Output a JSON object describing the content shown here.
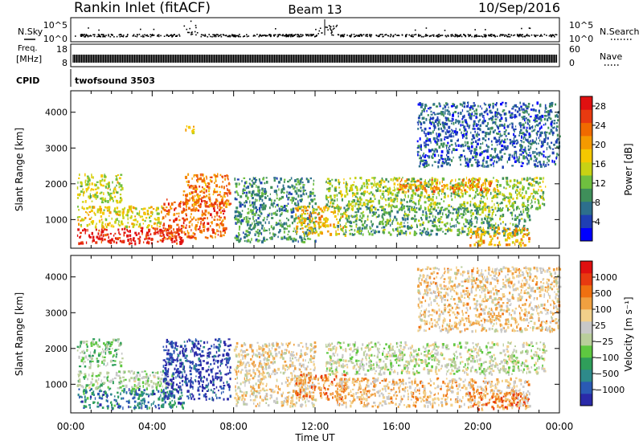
{
  "header": {
    "station": "Rankin Inlet (fitACF)",
    "beam": "Beam 13",
    "date": "10/Sep/2016"
  },
  "status_panels": {
    "nsky_label": "N.Sky",
    "nsky_ticks": [
      "10^5",
      "10^0"
    ],
    "nsearch_label": "N.Search",
    "nsearch_ticks": [
      "10^5",
      "10^0"
    ],
    "freq_label_line1": "Freq.",
    "freq_label_line2": "[MHz]",
    "freq_ticks": [
      "18",
      "8"
    ],
    "nave_label": "Nave",
    "nave_ticks": [
      "60",
      "0"
    ],
    "cpid_label": "CPID",
    "cpid_value": "twofsound 3503"
  },
  "chart_data": [
    {
      "type": "heatmap",
      "panel": "power",
      "ylabel": "Slant Range [km]",
      "xlabel": "",
      "yticks": [
        "1000",
        "2000",
        "3000",
        "4000"
      ],
      "ylim": [
        200,
        4600
      ],
      "xlim_hours": [
        0,
        24
      ],
      "colorbar": {
        "label": "Power [dB]",
        "ticks": [
          "4",
          "8",
          "12",
          "16",
          "20",
          "24",
          "28"
        ],
        "range": [
          0,
          30
        ],
        "colors": [
          "#0000ff",
          "#1f3fb4",
          "#2d6f8c",
          "#3f8f5a",
          "#6fbf3f",
          "#c8d214",
          "#f5c800",
          "#f59a00",
          "#f06a00",
          "#e83a10",
          "#e01010"
        ]
      },
      "echo_regions": [
        {
          "t0": 0.3,
          "t1": 5.5,
          "r0": 350,
          "r1": 800,
          "level": 0.95
        },
        {
          "t0": 0.3,
          "t1": 4.5,
          "r0": 800,
          "r1": 1400,
          "level": 0.55
        },
        {
          "t0": 4.5,
          "t1": 7.6,
          "r0": 500,
          "r1": 1600,
          "level": 0.8
        },
        {
          "t0": 5.5,
          "t1": 7.8,
          "r0": 1400,
          "r1": 2300,
          "level": 0.75
        },
        {
          "t0": 0.3,
          "t1": 2.5,
          "r0": 1500,
          "r1": 2300,
          "level": 0.5
        },
        {
          "t0": 5.6,
          "t1": 6.0,
          "r0": 3400,
          "r1": 3700,
          "level": 0.6
        },
        {
          "t0": 8.0,
          "t1": 12.0,
          "r0": 400,
          "r1": 2200,
          "level": 0.3
        },
        {
          "t0": 11.0,
          "t1": 13.5,
          "r0": 600,
          "r1": 1400,
          "level": 0.6
        },
        {
          "t0": 12.5,
          "t1": 23.3,
          "r0": 1300,
          "r1": 2200,
          "level": 0.45
        },
        {
          "t0": 16.0,
          "t1": 21.0,
          "r0": 1800,
          "r1": 2150,
          "level": 0.7
        },
        {
          "t0": 13.0,
          "t1": 22.5,
          "r0": 600,
          "r1": 1400,
          "level": 0.35
        },
        {
          "t0": 19.5,
          "t1": 22.5,
          "r0": 300,
          "r1": 800,
          "level": 0.65
        },
        {
          "t0": 17.0,
          "t1": 24.0,
          "r0": 2500,
          "r1": 4300,
          "level": 0.2
        }
      ]
    },
    {
      "type": "heatmap",
      "panel": "velocity",
      "ylabel": "Slant Range [km]",
      "xlabel": "Time UT",
      "yticks": [
        "1000",
        "2000",
        "3000",
        "4000"
      ],
      "ylim": [
        200,
        4600
      ],
      "xlim_hours": [
        0,
        24
      ],
      "xticks": [
        "00:00",
        "04:00",
        "08:00",
        "12:00",
        "16:00",
        "20:00",
        "00:00"
      ],
      "colorbar": {
        "label": "Velocity [m s⁻¹]",
        "ticks": [
          "1000",
          "500",
          "100",
          "25",
          "−25",
          "−100",
          "−500",
          "−1000"
        ],
        "range": [
          -1000,
          1000
        ],
        "colors": [
          "#2a2aa8",
          "#2a5ab4",
          "#2e8a8a",
          "#2f9e5a",
          "#5ec840",
          "#b9ce9a",
          "#c8c8c8",
          "#f2d08a",
          "#f0a040",
          "#f07010",
          "#e83a10",
          "#e01010"
        ]
      },
      "echo_regions": [
        {
          "t0": 0.3,
          "t1": 5.5,
          "r0": 350,
          "r1": 900,
          "level": 0.2
        },
        {
          "t0": 0.3,
          "t1": 5.0,
          "r0": 900,
          "r1": 1400,
          "level": 0.45
        },
        {
          "t0": 4.5,
          "t1": 7.8,
          "r0": 600,
          "r1": 2300,
          "level": 0.05
        },
        {
          "t0": 0.3,
          "t1": 2.5,
          "r0": 1500,
          "r1": 2300,
          "level": 0.4
        },
        {
          "t0": 8.0,
          "t1": 12.0,
          "r0": 400,
          "r1": 2200,
          "level": 0.6
        },
        {
          "t0": 11.0,
          "t1": 13.5,
          "r0": 600,
          "r1": 1300,
          "level": 0.75
        },
        {
          "t0": 12.5,
          "t1": 23.3,
          "r0": 1300,
          "r1": 2200,
          "level": 0.5
        },
        {
          "t0": 13.0,
          "t1": 22.5,
          "r0": 400,
          "r1": 1200,
          "level": 0.65
        },
        {
          "t0": 19.5,
          "t1": 22.5,
          "r0": 300,
          "r1": 800,
          "level": 0.78
        },
        {
          "t0": 17.0,
          "t1": 24.0,
          "r0": 2500,
          "r1": 4300,
          "level": 0.62
        }
      ]
    }
  ]
}
